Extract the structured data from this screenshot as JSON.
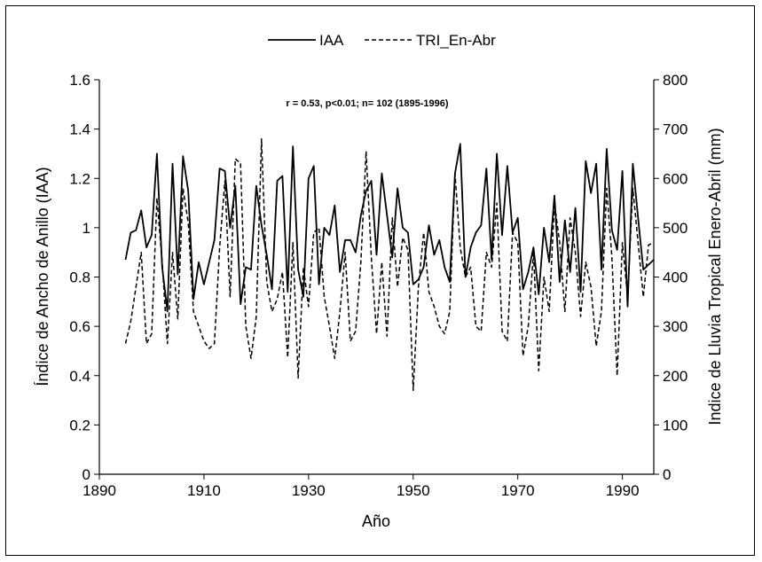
{
  "chart_data": {
    "type": "line",
    "annotation": "r = 0.53, p<0.01; n= 102 (1895-1996)",
    "xlabel": "Año",
    "ylabel_left": "Índice de Ancho de Anillo (IAA)",
    "ylabel_right": "Indice de Lluvia Tropical Enero-Abril (mm)",
    "xlim": [
      1890,
      1996
    ],
    "x_ticks": [
      "1890",
      "1910",
      "1930",
      "1950",
      "1970",
      "1990"
    ],
    "ylim_left": [
      0,
      1.6
    ],
    "y_ticks_left": [
      "0",
      "0.2",
      "0.4",
      "0.6",
      "0.8",
      "1",
      "1.2",
      "1.4",
      "1.6"
    ],
    "ylim_right": [
      0,
      800
    ],
    "y_ticks_right": [
      "0",
      "100",
      "200",
      "300",
      "400",
      "500",
      "600",
      "700",
      "800"
    ],
    "grid": false,
    "legend_position": "top-center",
    "x": [
      1895,
      1896,
      1897,
      1898,
      1899,
      1900,
      1901,
      1902,
      1903,
      1904,
      1905,
      1906,
      1907,
      1908,
      1909,
      1910,
      1911,
      1912,
      1913,
      1914,
      1915,
      1916,
      1917,
      1918,
      1919,
      1920,
      1921,
      1922,
      1923,
      1924,
      1925,
      1926,
      1927,
      1928,
      1929,
      1930,
      1931,
      1932,
      1933,
      1934,
      1935,
      1936,
      1937,
      1938,
      1939,
      1940,
      1941,
      1942,
      1943,
      1944,
      1945,
      1946,
      1947,
      1948,
      1949,
      1950,
      1951,
      1952,
      1953,
      1954,
      1955,
      1956,
      1957,
      1958,
      1959,
      1960,
      1961,
      1962,
      1963,
      1964,
      1965,
      1966,
      1967,
      1968,
      1969,
      1970,
      1971,
      1972,
      1973,
      1974,
      1975,
      1976,
      1977,
      1978,
      1979,
      1980,
      1981,
      1982,
      1983,
      1984,
      1985,
      1986,
      1987,
      1988,
      1989,
      1990,
      1991,
      1992,
      1993,
      1994,
      1995,
      1996
    ],
    "series": [
      {
        "name": "IAA",
        "axis": "left",
        "style": "solid",
        "values": [
          0.87,
          0.98,
          0.99,
          1.07,
          0.92,
          0.97,
          1.3,
          0.84,
          0.66,
          1.26,
          0.81,
          1.29,
          1.15,
          0.71,
          0.86,
          0.77,
          0.86,
          0.95,
          1.24,
          1.23,
          1.0,
          1.17,
          0.69,
          0.84,
          0.83,
          1.17,
          1.01,
          0.89,
          0.75,
          1.19,
          1.21,
          0.74,
          1.33,
          0.83,
          0.72,
          1.2,
          1.25,
          0.77,
          1.0,
          0.97,
          1.09,
          0.82,
          0.95,
          0.95,
          0.9,
          1.05,
          1.15,
          1.19,
          0.89,
          1.22,
          1.05,
          0.88,
          1.16,
          1.0,
          0.98,
          0.77,
          0.79,
          0.84,
          1.01,
          0.89,
          0.95,
          0.84,
          0.78,
          1.22,
          1.34,
          0.8,
          0.92,
          0.98,
          1.01,
          1.24,
          0.87,
          1.3,
          0.97,
          1.25,
          0.98,
          1.04,
          0.75,
          0.82,
          0.92,
          0.73,
          1.0,
          0.86,
          1.13,
          0.78,
          1.03,
          0.82,
          1.08,
          0.74,
          1.27,
          1.14,
          1.26,
          0.83,
          1.32,
          0.99,
          0.91,
          1.23,
          0.68,
          1.26,
          1.04,
          0.83,
          0.85,
          0.87
        ]
      },
      {
        "name": "TRI_En-Abr",
        "axis": "right",
        "style": "dashed",
        "values": [
          265,
          310,
          380,
          450,
          265,
          285,
          560,
          430,
          265,
          450,
          315,
          580,
          510,
          330,
          300,
          270,
          255,
          265,
          460,
          595,
          360,
          640,
          630,
          300,
          235,
          320,
          680,
          390,
          330,
          355,
          410,
          237,
          470,
          195,
          420,
          340,
          490,
          500,
          360,
          300,
          235,
          330,
          450,
          270,
          290,
          430,
          655,
          440,
          285,
          430,
          280,
          520,
          380,
          480,
          455,
          170,
          380,
          490,
          370,
          340,
          300,
          285,
          330,
          610,
          460,
          400,
          420,
          300,
          290,
          450,
          420,
          550,
          290,
          270,
          490,
          470,
          240,
          300,
          450,
          210,
          400,
          330,
          550,
          470,
          330,
          520,
          450,
          320,
          430,
          380,
          260,
          330,
          580,
          440,
          200,
          470,
          360,
          580,
          470,
          360,
          465,
          470
        ]
      }
    ]
  }
}
